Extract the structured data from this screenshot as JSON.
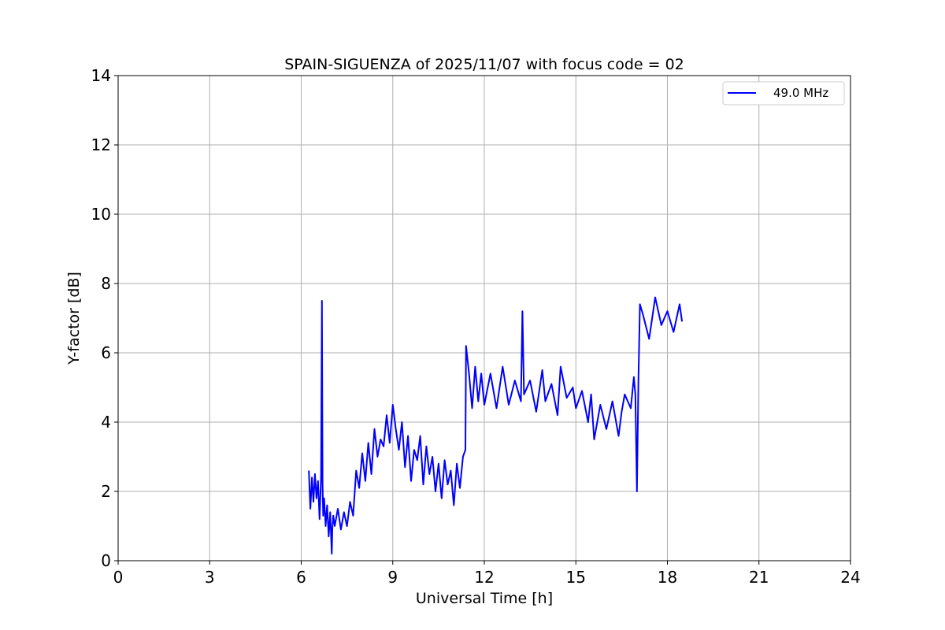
{
  "chart_data": {
    "type": "line",
    "title": "SPAIN-SIGUENZA of 2025/11/07 with focus code = 02",
    "xlabel": "Universal Time [h]",
    "ylabel": "Y-factor [dB]",
    "xlim": [
      0,
      24
    ],
    "ylim": [
      0,
      14
    ],
    "xticks": [
      0,
      3,
      6,
      9,
      12,
      15,
      18,
      21,
      24
    ],
    "yticks": [
      0,
      2,
      4,
      6,
      8,
      10,
      12,
      14
    ],
    "grid": true,
    "legend_position": "top-right",
    "series": [
      {
        "name": "49.0 MHz",
        "color": "#0000ff",
        "x": [
          6.25,
          6.3,
          6.35,
          6.4,
          6.45,
          6.5,
          6.55,
          6.6,
          6.65,
          6.68,
          6.7,
          6.72,
          6.75,
          6.8,
          6.85,
          6.9,
          6.95,
          7.0,
          7.02,
          7.05,
          7.1,
          7.2,
          7.3,
          7.4,
          7.5,
          7.6,
          7.7,
          7.8,
          7.9,
          8.0,
          8.1,
          8.2,
          8.3,
          8.4,
          8.5,
          8.6,
          8.7,
          8.8,
          8.9,
          9.0,
          9.1,
          9.2,
          9.3,
          9.4,
          9.5,
          9.6,
          9.7,
          9.8,
          9.9,
          10.0,
          10.1,
          10.2,
          10.3,
          10.4,
          10.5,
          10.6,
          10.7,
          10.8,
          10.9,
          11.0,
          11.1,
          11.2,
          11.3,
          11.38,
          11.4,
          11.5,
          11.6,
          11.7,
          11.8,
          11.9,
          12.0,
          12.2,
          12.4,
          12.6,
          12.8,
          13.0,
          13.2,
          13.25,
          13.3,
          13.5,
          13.7,
          13.9,
          14.0,
          14.2,
          14.4,
          14.5,
          14.7,
          14.9,
          15.0,
          15.2,
          15.4,
          15.5,
          15.6,
          15.8,
          16.0,
          16.2,
          16.4,
          16.5,
          16.6,
          16.8,
          16.9,
          16.95,
          17.0,
          17.05,
          17.1,
          17.2,
          17.4,
          17.6,
          17.8,
          18.0,
          18.2,
          18.4,
          18.48
        ],
        "y": [
          2.6,
          1.5,
          2.4,
          1.7,
          2.5,
          1.8,
          2.3,
          1.2,
          2.4,
          7.5,
          2.2,
          1.3,
          1.8,
          1.0,
          1.6,
          0.7,
          1.4,
          0.2,
          0.9,
          1.3,
          1.0,
          1.5,
          0.9,
          1.4,
          1.0,
          1.7,
          1.3,
          2.6,
          2.1,
          3.1,
          2.3,
          3.4,
          2.5,
          3.8,
          3.0,
          3.5,
          3.3,
          4.2,
          3.4,
          4.5,
          3.8,
          3.2,
          4.0,
          2.7,
          3.6,
          2.3,
          3.2,
          2.9,
          3.6,
          2.2,
          3.3,
          2.5,
          3.0,
          2.0,
          2.8,
          1.8,
          2.9,
          2.2,
          2.6,
          1.6,
          2.8,
          2.1,
          3.0,
          3.2,
          6.2,
          5.4,
          4.4,
          5.6,
          4.6,
          5.4,
          4.5,
          5.4,
          4.4,
          5.6,
          4.5,
          5.2,
          4.6,
          7.2,
          4.8,
          5.2,
          4.3,
          5.5,
          4.6,
          5.1,
          4.2,
          5.6,
          4.7,
          5.0,
          4.4,
          4.9,
          4.0,
          4.8,
          3.5,
          4.5,
          3.8,
          4.6,
          3.6,
          4.3,
          4.8,
          4.4,
          5.3,
          4.8,
          2.0,
          5.2,
          7.4,
          7.1,
          6.4,
          7.6,
          6.8,
          7.2,
          6.6,
          7.4,
          6.9
        ]
      }
    ]
  }
}
